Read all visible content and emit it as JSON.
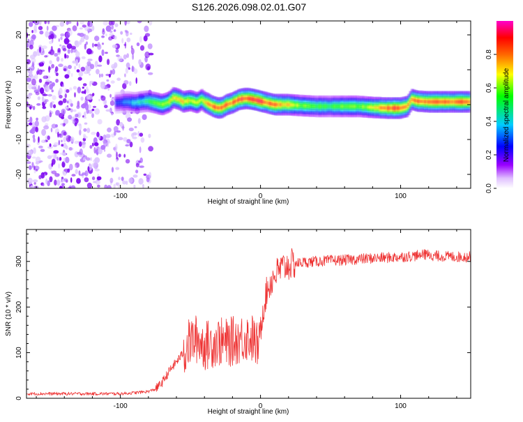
{
  "figure_title": "S126.2026.098.02.01.G07",
  "colors": {
    "snr_line": "#ee3333",
    "axis": "#000000",
    "background": "#ffffff"
  },
  "chart_data": [
    {
      "type": "heatmap",
      "title": "",
      "xlabel": "Height of straight line (km)",
      "ylabel": "Frequency (Hz)",
      "xlim": [
        -167,
        150
      ],
      "ylim": [
        -24,
        24
      ],
      "x_ticks": [
        -100,
        0,
        100
      ],
      "y_ticks": [
        -20,
        -10,
        0,
        10,
        20
      ],
      "colorbar": {
        "label": "Normalized spectral amplitude",
        "range": [
          0,
          1
        ],
        "ticks": [
          0.0,
          0.2,
          0.4,
          0.6,
          0.8
        ],
        "tick_labels": [
          "0.0",
          "0.2",
          "0.4",
          "0.6",
          "0.8"
        ],
        "colormap": [
          "#ffffff",
          "#9900ff",
          "#0000ff",
          "#00ccff",
          "#00ff00",
          "#ffff00",
          "#ff6600",
          "#ff0000",
          "#ff00cc"
        ]
      },
      "noise_region": {
        "x_from": -167,
        "x_to": -78,
        "amplitude": 0.15
      },
      "ridge": {
        "x": [
          -103,
          -95,
          -90,
          -85,
          -80,
          -75,
          -70,
          -65,
          -62,
          -58,
          -55,
          -50,
          -45,
          -42,
          -40,
          -37,
          -34,
          -30,
          -27,
          -24,
          -20,
          -15,
          -10,
          -5,
          0,
          5,
          10,
          15,
          20,
          30,
          40,
          50,
          60,
          70,
          80,
          90,
          95,
          100,
          105,
          108,
          112,
          120,
          130,
          140,
          150
        ],
        "frequency": [
          0.5,
          0.8,
          0.5,
          0.8,
          1.0,
          0.5,
          0.0,
          0.8,
          2.0,
          1.5,
          0.8,
          1.2,
          0.5,
          1.5,
          0.8,
          0.2,
          -0.5,
          -1.0,
          -0.8,
          0.0,
          0.5,
          1.5,
          1.8,
          1.5,
          1.0,
          0.5,
          0.0,
          0.0,
          0.0,
          -0.3,
          -0.5,
          -0.5,
          -0.5,
          -0.5,
          -0.8,
          -1.0,
          -1.0,
          -1.0,
          -0.5,
          1.5,
          1.0,
          0.8,
          0.8,
          0.8,
          0.8
        ],
        "amplitude": [
          0.25,
          0.35,
          0.4,
          0.45,
          0.5,
          0.6,
          0.65,
          0.7,
          0.75,
          0.7,
          0.75,
          0.7,
          0.7,
          0.65,
          0.7,
          0.8,
          0.85,
          0.85,
          0.85,
          0.85,
          0.85,
          0.9,
          0.9,
          0.9,
          0.9,
          0.85,
          0.85,
          0.8,
          0.75,
          0.6,
          0.55,
          0.55,
          0.6,
          0.6,
          0.7,
          0.85,
          0.9,
          0.85,
          0.8,
          0.8,
          0.85,
          0.85,
          0.85,
          0.85,
          0.85
        ]
      }
    },
    {
      "type": "line",
      "title": "",
      "xlabel": "Height of straight line (km)",
      "ylabel": "SNR (10 * v/v)",
      "xlim": [
        -167,
        150
      ],
      "ylim": [
        0,
        370
      ],
      "x_ticks": [
        -100,
        0,
        100
      ],
      "y_ticks": [
        0,
        100,
        200,
        300
      ],
      "series": [
        {
          "name": "SNR",
          "x": [
            -167,
            -140,
            -120,
            -100,
            -90,
            -80,
            -75,
            -70,
            -65,
            -60,
            -55,
            -50,
            -45,
            -40,
            -35,
            -30,
            -25,
            -20,
            -15,
            -10,
            -5,
            -2,
            0,
            2,
            5,
            10,
            15,
            20,
            25,
            30,
            40,
            50,
            60,
            70,
            80,
            90,
            100,
            110,
            118,
            125,
            140,
            150
          ],
          "y": [
            10,
            10,
            10,
            10,
            12,
            15,
            20,
            35,
            60,
            80,
            100,
            125,
            130,
            115,
            120,
            125,
            120,
            125,
            130,
            135,
            130,
            110,
            150,
            200,
            240,
            270,
            285,
            292,
            295,
            298,
            300,
            302,
            303,
            305,
            307,
            308,
            310,
            312,
            315,
            312,
            310,
            310
          ]
        }
      ]
    }
  ]
}
